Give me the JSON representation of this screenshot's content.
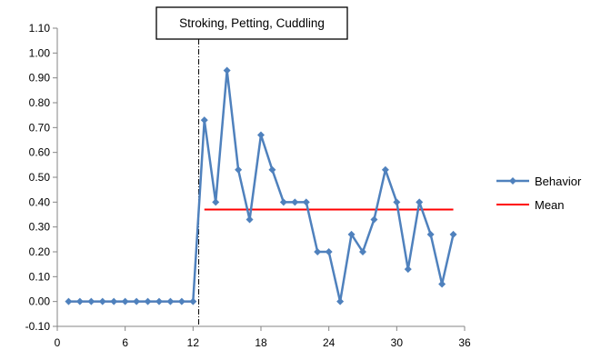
{
  "chart_data": {
    "type": "line",
    "xlim": [
      0,
      36
    ],
    "ylim": [
      -0.1,
      1.1
    ],
    "x_ticks": [
      "0",
      "6",
      "12",
      "18",
      "24",
      "30",
      "36"
    ],
    "y_ticks": [
      "-0.10",
      "0.00",
      "0.10",
      "0.20",
      "0.30",
      "0.40",
      "0.50",
      "0.60",
      "0.70",
      "0.80",
      "0.90",
      "1.00",
      "1.10"
    ],
    "grid": false,
    "legend_position": "right",
    "annotation": {
      "text": "Stroking, Petting, Cuddling",
      "phase_change_x": 12.5
    },
    "series": [
      {
        "name": "Behavior",
        "color": "#4f81bd",
        "marker": "diamond",
        "x": [
          1,
          2,
          3,
          4,
          5,
          6,
          7,
          8,
          9,
          10,
          11,
          12,
          13,
          14,
          15,
          16,
          17,
          18,
          19,
          20,
          21,
          22,
          23,
          24,
          25,
          26,
          27,
          28,
          29,
          30,
          31,
          32,
          33,
          34,
          35
        ],
        "values": [
          0,
          0,
          0,
          0,
          0,
          0,
          0,
          0,
          0,
          0,
          0,
          0,
          0.73,
          0.4,
          0.93,
          0.53,
          0.33,
          0.67,
          0.53,
          0.4,
          0.4,
          0.4,
          0.2,
          0.2,
          0.0,
          0.27,
          0.2,
          0.33,
          0.53,
          0.4,
          0.13,
          0.4,
          0.27,
          0.07,
          0.27
        ]
      },
      {
        "name": "Mean",
        "color": "#ff0000",
        "segments": [
          {
            "x": [
              1,
              12
            ],
            "values": [
              0,
              0
            ]
          },
          {
            "x": [
              13,
              35
            ],
            "values": [
              0.37,
              0.37
            ]
          }
        ]
      }
    ]
  }
}
